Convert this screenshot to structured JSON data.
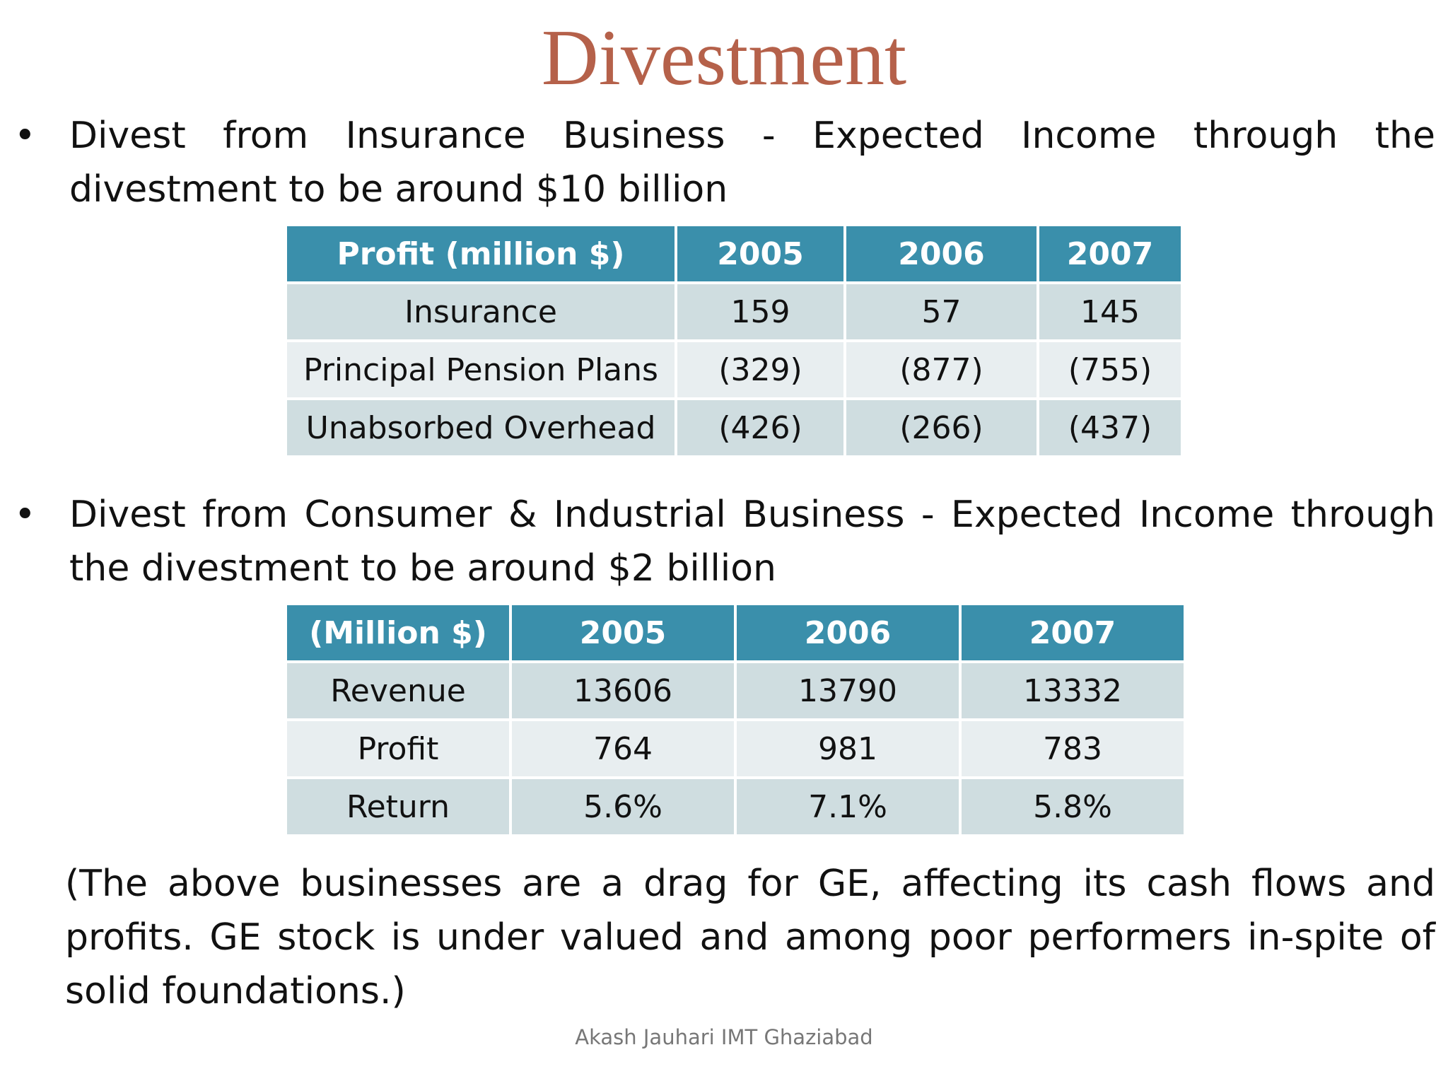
{
  "title": "Divestment",
  "bullets": [
    {
      "text": "Divest from Insurance Business - Expected Income through the divestment to be around $10 billion",
      "table": {
        "headers": [
          "Profit (million $)",
          "2005",
          "2006",
          "2007"
        ],
        "rows": [
          [
            "Insurance",
            "159",
            "57",
            "145"
          ],
          [
            "Principal Pension Plans",
            "(329)",
            "(877)",
            "(755)"
          ],
          [
            "Unabsorbed Overhead",
            "(426)",
            "(266)",
            "(437)"
          ]
        ]
      }
    },
    {
      "text": "Divest from Consumer & Industrial Business - Expected Income through the divestment to be around $2 billion",
      "table": {
        "headers": [
          "(Million $)",
          "2005",
          "2006",
          "2007"
        ],
        "rows": [
          [
            "Revenue",
            "13606",
            "13790",
            "13332"
          ],
          [
            "Profit",
            "764",
            "981",
            "783"
          ],
          [
            "Return",
            "5.6%",
            "7.1%",
            "5.8%"
          ]
        ]
      }
    }
  ],
  "note": "(The above businesses are a  drag for GE, affecting its cash flows and profits. GE stock is under valued and among poor performers in-spite of solid foundations.)",
  "footer": "Akash Jauhari IMT Ghaziabad",
  "colors": {
    "title": "#b5614a",
    "table_header": "#3a8fab",
    "row_odd": "#cfdde0",
    "row_even": "#e8eef0"
  }
}
